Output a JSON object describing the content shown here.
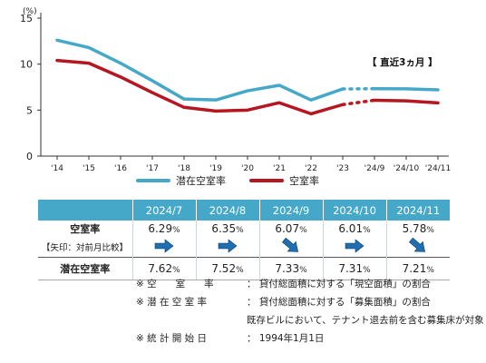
{
  "chart_data": {
    "type": "line",
    "x": [
      "'14",
      "'15",
      "'16",
      "'17",
      "'18",
      "'19",
      "'20",
      "'21",
      "'22",
      "'23",
      "'24/9",
      "'24/10",
      "'24/11"
    ],
    "y_unit": "(%)",
    "ylim": [
      0,
      15
    ],
    "yticks": [
      0,
      5,
      10,
      15
    ],
    "annotation": "【 直近3ヵ月 】",
    "series": [
      {
        "name": "潜在空室率",
        "color": "#46a8c9",
        "values": [
          12.6,
          11.8,
          10.1,
          8.2,
          6.2,
          6.1,
          7.1,
          7.7,
          6.1,
          7.3,
          7.33,
          7.31,
          7.21
        ]
      },
      {
        "name": "空室率",
        "color": "#b5161f",
        "values": [
          10.4,
          10.1,
          8.6,
          6.9,
          5.3,
          4.9,
          5.0,
          5.8,
          4.6,
          5.6,
          6.07,
          6.01,
          5.78
        ]
      }
    ]
  },
  "table": {
    "columns": [
      "2024/7",
      "2024/8",
      "2024/9",
      "2024/10",
      "2024/11"
    ],
    "vacancy_label": "空室率",
    "vacancy": [
      {
        "num": "6.29",
        "unit": "%"
      },
      {
        "num": "6.35",
        "unit": "%"
      },
      {
        "num": "6.07",
        "unit": "%"
      },
      {
        "num": "6.01",
        "unit": "%"
      },
      {
        "num": "5.78",
        "unit": "%"
      }
    ],
    "arrow_label": "【矢印：対前月比較】",
    "arrows": [
      "right",
      "right",
      "down",
      "right",
      "down"
    ],
    "potential_label": "潜在空室率",
    "potential": [
      {
        "num": "7.62",
        "unit": "%"
      },
      {
        "num": "7.52",
        "unit": "%"
      },
      {
        "num": "7.33",
        "unit": "%"
      },
      {
        "num": "7.31",
        "unit": "%"
      },
      {
        "num": "7.21",
        "unit": "%"
      }
    ]
  },
  "notes": {
    "n1_key": "※ 空　　室　　率",
    "n1_val": "： 貸付総面積に対する「現空面積」の割合",
    "n2_key": "※ 潜 在 空 室 率",
    "n2_val": "： 貸付総面積に対する「募集面積」の割合",
    "n2_sub": "既存ビルにおいて、テナント退去前を含む募集床が対象",
    "n3_key": "※ 統 計 開 始 日",
    "n3_val": "： 1994年1月1日"
  },
  "colors": {
    "header": "#46a8c9",
    "arrow": "#1f6fb0"
  }
}
